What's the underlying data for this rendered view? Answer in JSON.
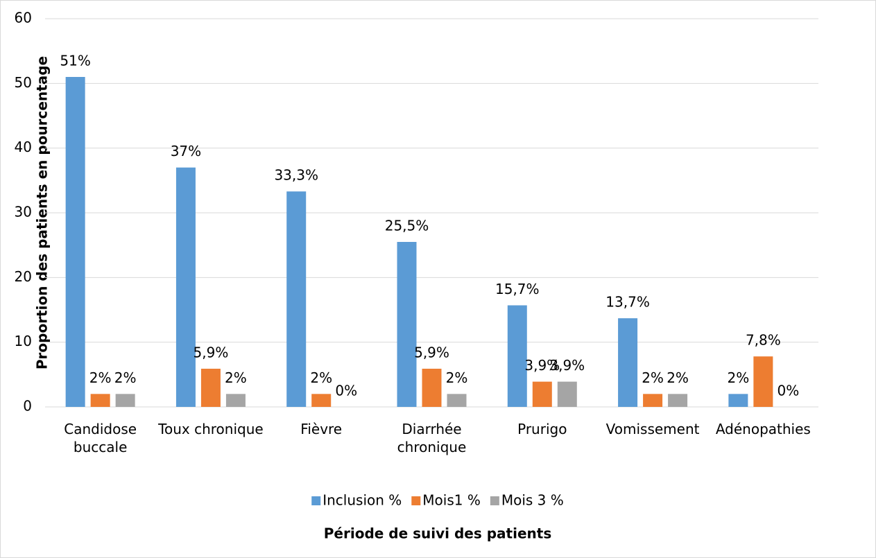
{
  "chart_data": {
    "type": "bar",
    "ylabel": "Proportion des patients en pourcentage",
    "xlabel": "Période de suivi des patients",
    "categories": [
      "Candidose buccale",
      "Toux chronique",
      "Fièvre",
      "Diarrhée chronique",
      "Prurigo",
      "Vomissement",
      "Adénopathies"
    ],
    "series": [
      {
        "name": "Inclusion %",
        "color": "#5b9bd5",
        "values": [
          51,
          37,
          33.3,
          25.5,
          15.7,
          13.7,
          2
        ],
        "value_labels": [
          "51%",
          "37%",
          "33,3%",
          "25,5%",
          "15,7%",
          "13,7%",
          "2%"
        ]
      },
      {
        "name": "Mois1 %",
        "color": "#ed7d31",
        "values": [
          2,
          5.9,
          2,
          5.9,
          3.9,
          2,
          7.8
        ],
        "value_labels": [
          "2%",
          "5,9%",
          "2%",
          "5,9%",
          "3,9%",
          "2%",
          "7,8%"
        ]
      },
      {
        "name": "Mois 3 %",
        "color": "#a5a5a5",
        "values": [
          2,
          2,
          0,
          2,
          3.9,
          2,
          0
        ],
        "value_labels": [
          "2%",
          "2%",
          "0%",
          "2%",
          "3,9%",
          "2%",
          "0%"
        ]
      }
    ],
    "ylim": [
      0,
      60
    ],
    "yticks": [
      0,
      10,
      20,
      30,
      40,
      50,
      60
    ],
    "grid": true,
    "legend": "bottom"
  }
}
